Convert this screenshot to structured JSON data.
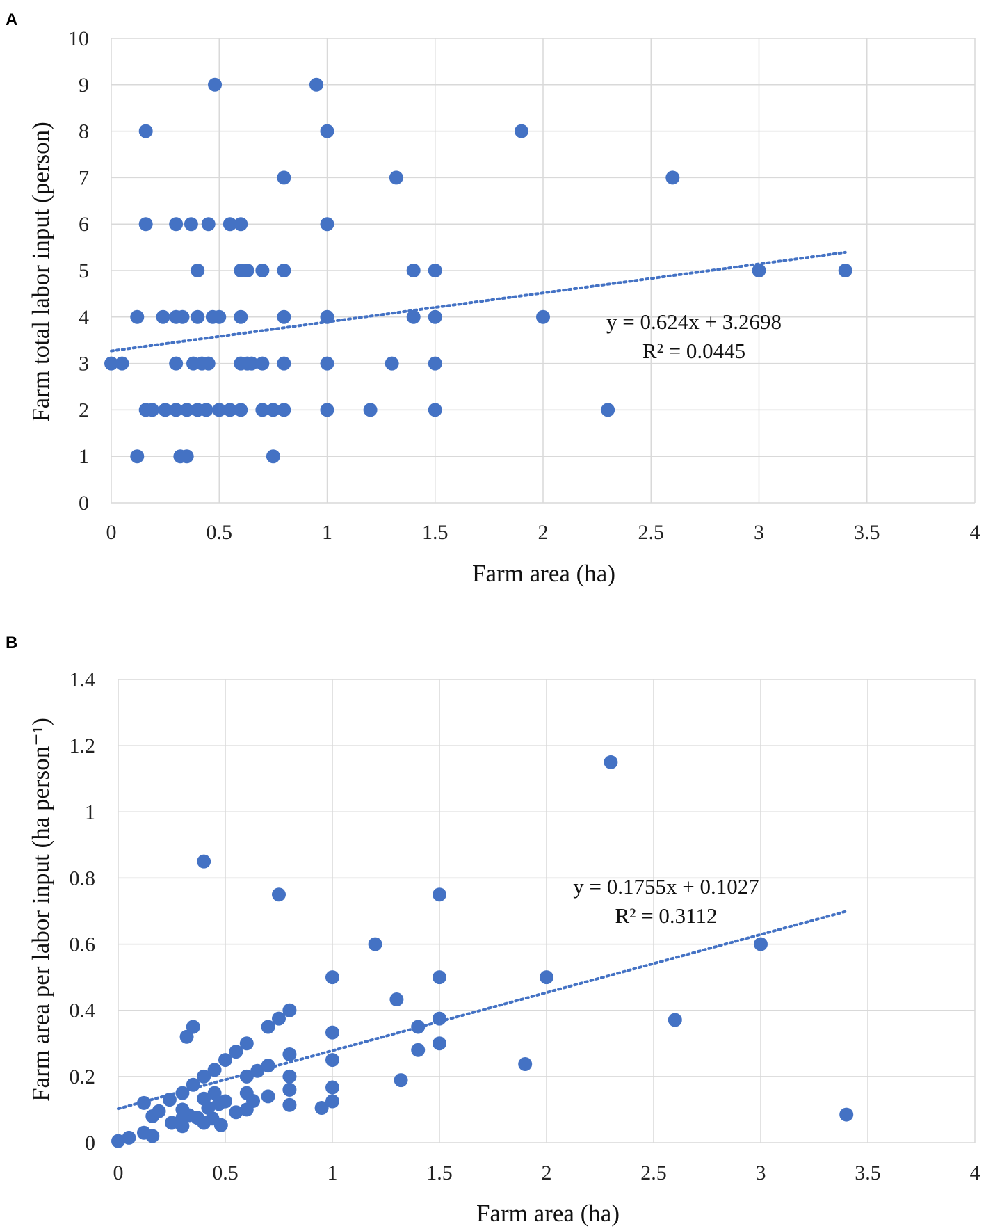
{
  "colors": {
    "point": "#4472c4",
    "trend": "#4472c4",
    "grid": "#d9d9d9"
  },
  "chart_data": [
    {
      "type": "scatter",
      "panel_label": "A",
      "xlabel": "Farm area (ha)",
      "ylabel": "Farm total labor input (person)",
      "xlim": [
        0,
        4
      ],
      "ylim": [
        0,
        10
      ],
      "x_ticks": [
        0,
        0.5,
        1,
        1.5,
        2,
        2.5,
        3,
        3.5,
        4
      ],
      "y_ticks": [
        0,
        1,
        2,
        3,
        4,
        5,
        6,
        7,
        8,
        9,
        10
      ],
      "x_tick_labels": [
        "0",
        "0.5",
        "1",
        "1.5",
        "2",
        "2.5",
        "3",
        "3.5",
        "4"
      ],
      "y_tick_labels": [
        "0",
        "1",
        "2",
        "3",
        "4",
        "5",
        "6",
        "7",
        "8",
        "9",
        "10"
      ],
      "grid": true,
      "trendline": {
        "slope": 0.624,
        "intercept": 3.2698,
        "x_range": [
          0,
          3.4
        ],
        "equation": "y = 0.624x + 3.2698",
        "r2": "R² = 0.0445"
      },
      "points": [
        [
          0.48,
          9
        ],
        [
          0.95,
          9
        ],
        [
          0.16,
          8
        ],
        [
          1.0,
          8
        ],
        [
          1.9,
          8
        ],
        [
          0.8,
          7
        ],
        [
          1.32,
          7
        ],
        [
          2.6,
          7
        ],
        [
          0.16,
          6
        ],
        [
          0.3,
          6
        ],
        [
          0.37,
          6
        ],
        [
          0.45,
          6
        ],
        [
          0.55,
          6
        ],
        [
          0.6,
          6
        ],
        [
          1.0,
          6
        ],
        [
          0.4,
          5
        ],
        [
          0.6,
          5
        ],
        [
          0.63,
          5
        ],
        [
          0.7,
          5
        ],
        [
          0.8,
          5
        ],
        [
          1.4,
          5
        ],
        [
          1.5,
          5
        ],
        [
          3.0,
          5
        ],
        [
          3.4,
          5
        ],
        [
          0.12,
          4
        ],
        [
          0.24,
          4
        ],
        [
          0.3,
          4
        ],
        [
          0.33,
          4
        ],
        [
          0.4,
          4
        ],
        [
          0.47,
          4
        ],
        [
          0.5,
          4
        ],
        [
          0.6,
          4
        ],
        [
          0.8,
          4
        ],
        [
          1.0,
          4
        ],
        [
          1.4,
          4
        ],
        [
          1.5,
          4
        ],
        [
          2.0,
          4
        ],
        [
          0.0,
          3
        ],
        [
          0.05,
          3
        ],
        [
          0.3,
          3
        ],
        [
          0.38,
          3
        ],
        [
          0.42,
          3
        ],
        [
          0.45,
          3
        ],
        [
          0.6,
          3
        ],
        [
          0.63,
          3
        ],
        [
          0.65,
          3
        ],
        [
          0.7,
          3
        ],
        [
          0.8,
          3
        ],
        [
          1.0,
          3
        ],
        [
          1.3,
          3
        ],
        [
          1.5,
          3
        ],
        [
          0.16,
          2
        ],
        [
          0.19,
          2
        ],
        [
          0.25,
          2
        ],
        [
          0.3,
          2
        ],
        [
          0.35,
          2
        ],
        [
          0.4,
          2
        ],
        [
          0.44,
          2
        ],
        [
          0.5,
          2
        ],
        [
          0.55,
          2
        ],
        [
          0.6,
          2
        ],
        [
          0.7,
          2
        ],
        [
          0.75,
          2
        ],
        [
          0.8,
          2
        ],
        [
          1.0,
          2
        ],
        [
          1.2,
          2
        ],
        [
          1.5,
          2
        ],
        [
          2.3,
          2
        ],
        [
          0.12,
          1
        ],
        [
          0.32,
          1
        ],
        [
          0.35,
          1
        ],
        [
          0.75,
          1
        ]
      ]
    },
    {
      "type": "scatter",
      "panel_label": "B",
      "xlabel": "Farm area (ha)",
      "ylabel": "Farm area per labor input (ha person⁻¹)",
      "xlim": [
        0,
        4
      ],
      "ylim": [
        0,
        1.4
      ],
      "x_ticks": [
        0,
        0.5,
        1,
        1.5,
        2,
        2.5,
        3,
        3.5,
        4
      ],
      "y_ticks": [
        0,
        0.2,
        0.4,
        0.6,
        0.8,
        1,
        1.2,
        1.4
      ],
      "x_tick_labels": [
        "0",
        "0.5",
        "1",
        "1.5",
        "2",
        "2.5",
        "3",
        "3.5",
        "4"
      ],
      "y_tick_labels": [
        "0",
        "0.2",
        "0.4",
        "0.6",
        "0.8",
        "1",
        "1.2",
        "1.4"
      ],
      "grid": true,
      "trendline": {
        "slope": 0.1755,
        "intercept": 0.1027,
        "x_range": [
          0,
          3.4
        ],
        "equation": "y = 0.1755x + 0.1027",
        "r2": "R² = 0.3112"
      },
      "points": [
        [
          2.3,
          1.15
        ],
        [
          0.4,
          0.85
        ],
        [
          0.75,
          0.75
        ],
        [
          1.5,
          0.75
        ],
        [
          1.2,
          0.6
        ],
        [
          3.0,
          0.6
        ],
        [
          1.0,
          0.5
        ],
        [
          1.5,
          0.5
        ],
        [
          2.0,
          0.5
        ],
        [
          1.3,
          0.433
        ],
        [
          0.8,
          0.4
        ],
        [
          0.75,
          0.375
        ],
        [
          1.5,
          0.375
        ],
        [
          2.6,
          0.371
        ],
        [
          0.35,
          0.35
        ],
        [
          0.7,
          0.35
        ],
        [
          1.4,
          0.35
        ],
        [
          1.0,
          0.333
        ],
        [
          0.32,
          0.32
        ],
        [
          0.6,
          0.3
        ],
        [
          1.5,
          0.3
        ],
        [
          0.55,
          0.275
        ],
        [
          1.4,
          0.28
        ],
        [
          0.8,
          0.267
        ],
        [
          0.5,
          0.25
        ],
        [
          1.0,
          0.25
        ],
        [
          1.9,
          0.2375
        ],
        [
          0.7,
          0.233
        ],
        [
          0.45,
          0.22
        ],
        [
          0.65,
          0.217
        ],
        [
          0.6,
          0.2
        ],
        [
          0.4,
          0.2
        ],
        [
          0.8,
          0.2
        ],
        [
          1.32,
          0.189
        ],
        [
          0.35,
          0.175
        ],
        [
          0.8,
          0.16
        ],
        [
          1.0,
          0.167
        ],
        [
          0.3,
          0.15
        ],
        [
          0.45,
          0.15
        ],
        [
          0.6,
          0.15
        ],
        [
          0.4,
          0.133
        ],
        [
          0.24,
          0.13
        ],
        [
          0.63,
          0.126
        ],
        [
          0.5,
          0.125
        ],
        [
          1.0,
          0.125
        ],
        [
          0.12,
          0.12
        ],
        [
          0.47,
          0.117
        ],
        [
          0.8,
          0.114
        ],
        [
          0.3,
          0.1
        ],
        [
          0.6,
          0.1
        ],
        [
          0.95,
          0.105
        ],
        [
          0.7,
          0.14
        ],
        [
          0.42,
          0.105
        ],
        [
          0.55,
          0.092
        ],
        [
          0.19,
          0.095
        ],
        [
          0.16,
          0.08
        ],
        [
          0.33,
          0.083
        ],
        [
          0.37,
          0.075
        ],
        [
          0.44,
          0.073
        ],
        [
          3.4,
          0.085
        ],
        [
          0.4,
          0.06
        ],
        [
          0.25,
          0.06
        ],
        [
          0.3,
          0.05
        ],
        [
          0.48,
          0.053
        ],
        [
          0.12,
          0.03
        ],
        [
          0.16,
          0.02
        ],
        [
          0.05,
          0.015
        ],
        [
          0.0,
          0.005
        ],
        [
          0.3,
          0.075
        ]
      ]
    }
  ]
}
